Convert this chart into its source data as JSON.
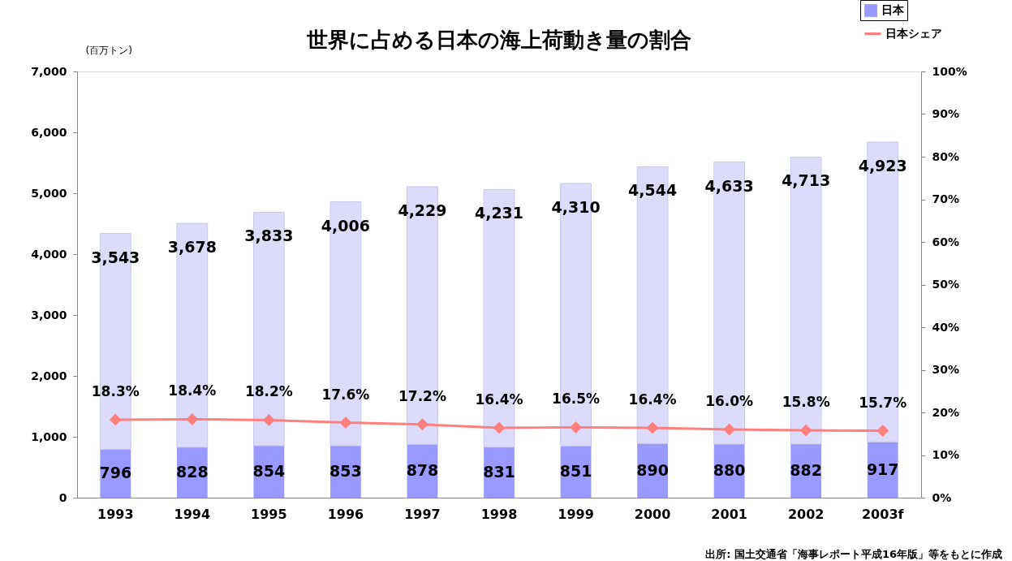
{
  "chart_data": {
    "type": "bar",
    "title": "世界に占める日本の海上荷動き量の割合",
    "ylabel": "(百万トン)",
    "categories": [
      "1993",
      "1994",
      "1995",
      "1996",
      "1997",
      "1998",
      "1999",
      "2000",
      "2001",
      "2002",
      "2003f"
    ],
    "stacked": true,
    "series": [
      {
        "name": "日本",
        "type": "bar",
        "color": "#9999ff",
        "values": [
          796,
          828,
          854,
          853,
          878,
          831,
          851,
          890,
          880,
          882,
          917
        ],
        "value_labels": [
          "796",
          "828",
          "854",
          "853",
          "878",
          "831",
          "851",
          "890",
          "880",
          "882",
          "917"
        ]
      },
      {
        "type": "bar",
        "color": "#dcdcfa",
        "values": [
          3543,
          3678,
          3833,
          4006,
          4229,
          4231,
          4310,
          4544,
          4633,
          4713,
          4923
        ],
        "value_labels": [
          "3,543",
          "3,678",
          "3,833",
          "4,006",
          "4,229",
          "4,231",
          "4,310",
          "4,544",
          "4,633",
          "4,713",
          "4,923"
        ]
      },
      {
        "name": "日本シェア",
        "type": "line",
        "axis": "y2",
        "color": "#ff7f7f",
        "values": [
          18.3,
          18.4,
          18.2,
          17.6,
          17.2,
          16.4,
          16.5,
          16.4,
          16.0,
          15.8,
          15.7
        ],
        "value_labels": [
          "18.3%",
          "18.4%",
          "18.2%",
          "17.6%",
          "17.2%",
          "16.4%",
          "16.5%",
          "16.4%",
          "16.0%",
          "15.8%",
          "15.7%"
        ]
      }
    ],
    "ylim": [
      0,
      7000
    ],
    "yticks": [
      {
        "value": 0,
        "label": "0"
      },
      {
        "value": 1000,
        "label": "1,000"
      },
      {
        "value": 2000,
        "label": "2,000"
      },
      {
        "value": 3000,
        "label": "3,000"
      },
      {
        "value": 4000,
        "label": "4,000"
      },
      {
        "value": 5000,
        "label": "5,000"
      },
      {
        "value": 6000,
        "label": "6,000"
      },
      {
        "value": 7000,
        "label": "7,000"
      }
    ],
    "y2lim": [
      0,
      100
    ],
    "y2ticks": [
      {
        "value": 0,
        "label": "0%"
      },
      {
        "value": 10,
        "label": "10%"
      },
      {
        "value": 20,
        "label": "20%"
      },
      {
        "value": 30,
        "label": "30%"
      },
      {
        "value": 40,
        "label": "40%"
      },
      {
        "value": 50,
        "label": "50%"
      },
      {
        "value": 60,
        "label": "60%"
      },
      {
        "value": 70,
        "label": "70%"
      },
      {
        "value": 80,
        "label": "80%"
      },
      {
        "value": 90,
        "label": "90%"
      },
      {
        "value": 100,
        "label": "100%"
      }
    ],
    "marker": "diamond",
    "grid": false,
    "legend": "top right",
    "annotations": [
      "出所: 国土交通省「海事レポート平成16年版」等をもとに作成"
    ]
  }
}
